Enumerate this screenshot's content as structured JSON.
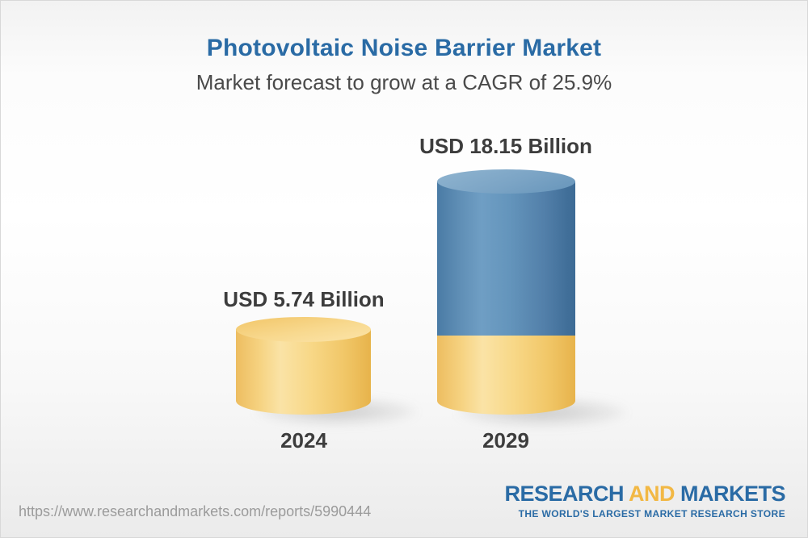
{
  "chart_data": {
    "type": "bar",
    "title": "Photovoltaic Noise Barrier Market",
    "subtitle": "Market forecast to grow at a CAGR of 25.9%",
    "unit": "USD Billion",
    "cagr_percent": 25.9,
    "categories": [
      "2024",
      "2029"
    ],
    "values": [
      5.74,
      18.15
    ],
    "value_labels": [
      "USD 5.74 Billion",
      "USD 18.15 Billion"
    ],
    "bar_style": "3d-cylinder",
    "legend": "none",
    "grid": false,
    "colors": {
      "base_yellow": "#f6cf78",
      "growth_blue": "#5587b1",
      "title_blue": "#2a6ba5",
      "text_dark": "#3d3d3d"
    }
  },
  "footer": {
    "url": "https://www.researchandmarkets.com/reports/5990444",
    "logo": {
      "word_research": "RESEARCH",
      "word_and": "AND",
      "word_markets": "MARKETS",
      "tagline": "THE WORLD'S LARGEST MARKET RESEARCH STORE",
      "blue": "#2a6ba5",
      "yellow": "#f2b844"
    }
  }
}
